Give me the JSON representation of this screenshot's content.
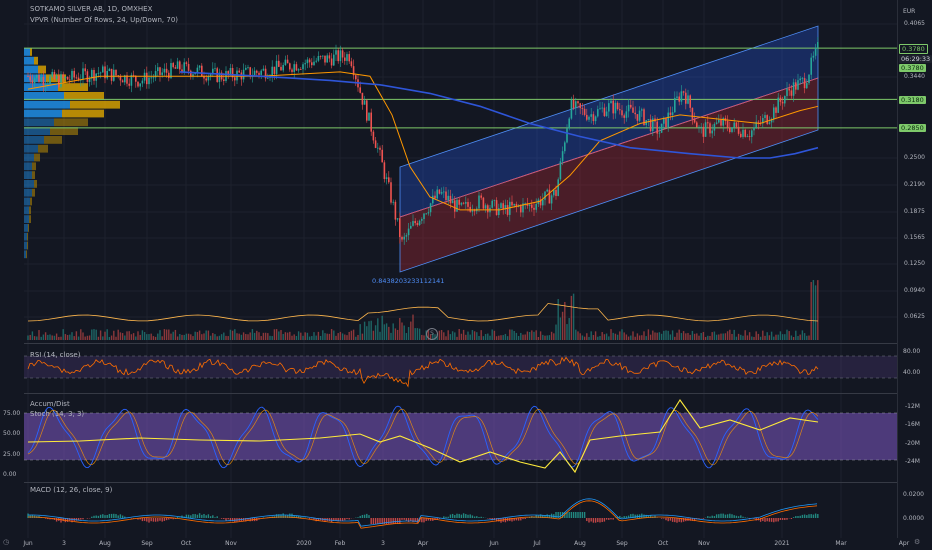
{
  "header": {
    "symbol_line": "SOTKAMO SILVER AB, 1D, OMXHEX",
    "indicator_line": "VPVR (Number Of Rows, 24, Up/Down, 70)",
    "currency": "EUR"
  },
  "price_axis": {
    "ticks": [
      "0.4065",
      "0.3440",
      "0.2500",
      "0.2190",
      "0.1875",
      "0.1565",
      "0.1250",
      "0.0940",
      "0.0625"
    ],
    "tags": [
      {
        "text": "0.3780",
        "kind": "outline"
      },
      {
        "text": "06:29:33",
        "kind": "dark"
      },
      {
        "text": "0.3780",
        "kind": "green"
      },
      {
        "text": "0.3180",
        "kind": "green"
      },
      {
        "text": "0.2850",
        "kind": "green"
      }
    ]
  },
  "channel_annotation": "0.8438203233112141",
  "time_axis": {
    "labels": [
      "Jun",
      "3",
      "Aug",
      "Sep",
      "Oct",
      "Nov",
      "2020",
      "Feb",
      "3",
      "Apr",
      "Jun",
      "Jul",
      "Aug",
      "Sep",
      "Oct",
      "Nov",
      "2021",
      "Mar",
      "Apr"
    ]
  },
  "rsi": {
    "title": "RSI (14, close)",
    "ticks": [
      "80.00",
      "40.00"
    ]
  },
  "stoch": {
    "title_accum": "Accum/Dist",
    "title_stoch": "Stoch (14, 3, 3)",
    "left_ticks": [
      "75.00",
      "50.00",
      "25.00",
      "0.00"
    ],
    "right_ticks": [
      "-12M",
      "-16M",
      "-20M",
      "-24M"
    ]
  },
  "macd": {
    "title": "MACD (12, 26, close, 9)",
    "ticks": [
      "0.0200",
      "0.0000"
    ]
  },
  "colors": {
    "background": "#131722",
    "hline": "#7ec96a",
    "channel_up": "#2962ff",
    "channel_down": "#b22833",
    "candle_up": "#26a69a",
    "candle_down": "#ef5350",
    "ma_orange": "#ff9800",
    "ma_blue": "#2e55d8",
    "rsi_line": "#ff6d00",
    "stoch_bg": "#7e57c2",
    "accum_line": "#ffeb3b",
    "vp_up": "#2196f3",
    "vp_down": "#e0a800"
  },
  "chart_data": [
    {
      "type": "line",
      "title": "SOTKAMO SILVER AB, 1D, OMXHEX",
      "xlabel": "",
      "ylabel": "EUR",
      "ylim": [
        0.05,
        0.42
      ],
      "x": [
        "Jun 2019",
        "Aug 2019",
        "Oct 2019",
        "Dec 2019",
        "Feb 2020",
        "Mar 2020",
        "Apr 2020",
        "Jun 2020",
        "Aug 2020",
        "Oct 2020",
        "Dec 2020",
        "Feb 2021"
      ],
      "series": [
        {
          "name": "close",
          "values": [
            0.36,
            0.34,
            0.355,
            0.34,
            0.37,
            0.26,
            0.14,
            0.2,
            0.3,
            0.31,
            0.29,
            0.378
          ]
        }
      ],
      "horizontal_levels": [
        0.378,
        0.318,
        0.285
      ]
    },
    {
      "type": "line",
      "title": "RSI (14, close)",
      "ylim": [
        20,
        90
      ],
      "series": [
        {
          "name": "",
          "values": [
            55,
            52,
            56,
            50,
            58,
            30,
            45,
            60,
            62,
            55,
            54,
            70
          ]
        }
      ]
    },
    {
      "type": "line",
      "title": "Stoch (14, 3, 3)",
      "ylim": [
        0,
        100
      ],
      "series": [
        {
          "name": "",
          "values": [
            40,
            80,
            30,
            70,
            50,
            20,
            60,
            80,
            40,
            90,
            30,
            75
          ]
        }
      ]
    },
    {
      "type": "line",
      "title": "Accum/Dist",
      "ylim": [
        -24000000,
        -12000000
      ],
      "series": [
        {
          "name": "",
          "values": [
            -18000000,
            -17500000,
            -17000000,
            -17200000,
            -18500000,
            -21000000,
            -20000000,
            -17000000,
            -16500000,
            -15500000,
            -16000000,
            -15500000
          ]
        }
      ]
    },
    {
      "type": "bar",
      "title": "MACD (12, 26, close, 9)",
      "ylim": [
        -0.01,
        0.025
      ],
      "series": [
        {
          "name": "",
          "values": [
            0.001,
            -0.001,
            0.002,
            -0.002,
            0.003,
            -0.01,
            0.005,
            0.02,
            0.004,
            -0.003,
            0.008,
            0.012
          ]
        }
      ]
    }
  ]
}
